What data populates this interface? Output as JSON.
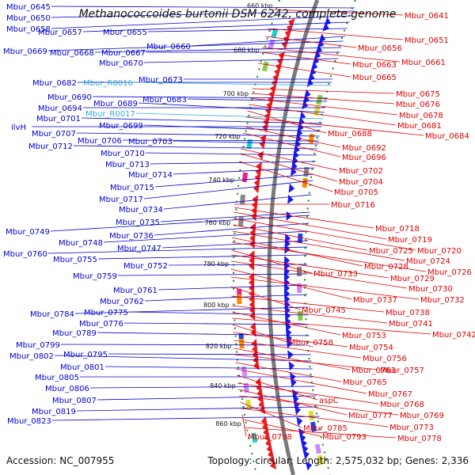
{
  "title": "Methanococcoides burtonii DSM 6242, complete genome",
  "footer": {
    "accession": "Accession: NC_007955",
    "summary": "Topology: circular; Length: 2,575,032 bp; Genes: 2,336"
  },
  "colors": {
    "left_label": "#0000cc",
    "rna_label": "#33aadd",
    "right_label": "#dd0000",
    "forward_strand": "#1a1aee",
    "reverse_strand": "#ee1a1a",
    "backbone": "#7a7a7a",
    "tick": "#118811"
  },
  "scale_ticks": [
    "660 kbp",
    "680 kbp",
    "700 kbp",
    "720 kbp",
    "740 kbp",
    "760 kbp",
    "780 kbp",
    "800 kbp",
    "820 kbp",
    "840 kbp",
    "860 kbp"
  ],
  "left_labels": [
    {
      "text": "Mbur_0645",
      "type": "gene"
    },
    {
      "text": "Mbur_0650",
      "type": "gene"
    },
    {
      "text": "Mbur_0658",
      "type": "gene"
    },
    {
      "text": "Mbur_0657",
      "type": "gene"
    },
    {
      "text": "Mbur_0655",
      "type": "gene"
    },
    {
      "text": "Mbur_0660",
      "type": "gene"
    },
    {
      "text": "Mbur_0669",
      "type": "gene"
    },
    {
      "text": "Mbur_0668",
      "type": "gene"
    },
    {
      "text": "Mbur_0667",
      "type": "gene"
    },
    {
      "text": "Mbur_0670",
      "type": "gene"
    },
    {
      "text": "Mbur_0673",
      "type": "gene"
    },
    {
      "text": "Mbur_0682",
      "type": "gene"
    },
    {
      "text": "Mbur_R0016",
      "type": "rna"
    },
    {
      "text": "Mbur_0690",
      "type": "gene"
    },
    {
      "text": "Mbur_0683",
      "type": "gene"
    },
    {
      "text": "Mbur_0694",
      "type": "gene"
    },
    {
      "text": "Mbur_0689",
      "type": "gene"
    },
    {
      "text": "Mbur_R0017",
      "type": "rna"
    },
    {
      "text": "Mbur_0701",
      "type": "gene"
    },
    {
      "text": "ilvH",
      "type": "gene"
    },
    {
      "text": "Mbur_0699",
      "type": "gene"
    },
    {
      "text": "Mbur_0707",
      "type": "gene"
    },
    {
      "text": "Mbur_0706",
      "type": "gene"
    },
    {
      "text": "Mbur_0703",
      "type": "gene"
    },
    {
      "text": "Mbur_0712",
      "type": "gene"
    },
    {
      "text": "Mbur_0710",
      "type": "gene"
    },
    {
      "text": "Mbur_0713",
      "type": "gene"
    },
    {
      "text": "Mbur_0714",
      "type": "gene"
    },
    {
      "text": "Mbur_0715",
      "type": "gene"
    },
    {
      "text": "Mbur_0717",
      "type": "gene"
    },
    {
      "text": "Mbur_0734",
      "type": "gene"
    },
    {
      "text": "Mbur_0735",
      "type": "gene"
    },
    {
      "text": "Mbur_0749",
      "type": "gene"
    },
    {
      "text": "Mbur_0736",
      "type": "gene"
    },
    {
      "text": "Mbur_0748",
      "type": "gene"
    },
    {
      "text": "Mbur_0747",
      "type": "gene"
    },
    {
      "text": "Mbur_0760",
      "type": "gene"
    },
    {
      "text": "Mbur_0755",
      "type": "gene"
    },
    {
      "text": "Mbur_0752",
      "type": "gene"
    },
    {
      "text": "Mbur_0759",
      "type": "gene"
    },
    {
      "text": "Mbur_0761",
      "type": "gene"
    },
    {
      "text": "Mbur_0762",
      "type": "gene"
    },
    {
      "text": "Mbur_0784",
      "type": "gene"
    },
    {
      "text": "Mbur_0775",
      "type": "gene"
    },
    {
      "text": "Mbur_0776",
      "type": "gene"
    },
    {
      "text": "Mbur_0789",
      "type": "gene"
    },
    {
      "text": "Mbur_0799",
      "type": "gene"
    },
    {
      "text": "Mbur_0795",
      "type": "gene"
    },
    {
      "text": "Mbur_0802",
      "type": "gene"
    },
    {
      "text": "Mbur_0801",
      "type": "gene"
    },
    {
      "text": "Mbur_0805",
      "type": "gene"
    },
    {
      "text": "Mbur_0806",
      "type": "gene"
    },
    {
      "text": "Mbur_0807",
      "type": "gene"
    },
    {
      "text": "Mbur_0819",
      "type": "gene"
    },
    {
      "text": "Mbur_0823",
      "type": "gene"
    }
  ],
  "right_labels": [
    {
      "text": "Mbur_0641"
    },
    {
      "text": "Mbur_0651"
    },
    {
      "text": "Mbur_0656"
    },
    {
      "text": "Mbur_0661"
    },
    {
      "text": "Mbur_0663"
    },
    {
      "text": "Mbur_0665"
    },
    {
      "text": "Mbur_0675"
    },
    {
      "text": "Mbur_0676"
    },
    {
      "text": "Mbur_0678"
    },
    {
      "text": "Mbur_0681"
    },
    {
      "text": "Mbur_0688"
    },
    {
      "text": "Mbur_0684"
    },
    {
      "text": "Mbur_0692"
    },
    {
      "text": "Mbur_0696"
    },
    {
      "text": "Mbur_0702"
    },
    {
      "text": "Mbur_0704"
    },
    {
      "text": "Mbur_0705"
    },
    {
      "text": "Mbur_0716"
    },
    {
      "text": "Mbur_0718"
    },
    {
      "text": "Mbur_0719"
    },
    {
      "text": "Mbur_0720"
    },
    {
      "text": "Mbur_0725"
    },
    {
      "text": "Mbur_0724"
    },
    {
      "text": "Mbur_0728"
    },
    {
      "text": "Mbur_0726"
    },
    {
      "text": "Mbur_0733"
    },
    {
      "text": "Mbur_0729"
    },
    {
      "text": "Mbur_0730"
    },
    {
      "text": "Mbur_0737"
    },
    {
      "text": "Mbur_0732"
    },
    {
      "text": "Mbur_0745"
    },
    {
      "text": "Mbur_0738"
    },
    {
      "text": "Mbur_0741"
    },
    {
      "text": "Mbur_0753"
    },
    {
      "text": "Mbur_0742"
    },
    {
      "text": "Mbur_0758"
    },
    {
      "text": "Mbur_0754"
    },
    {
      "text": "Mbur_0756"
    },
    {
      "text": "Mbur_0763"
    },
    {
      "text": "Mbur_0757"
    },
    {
      "text": "Mbur_0765"
    },
    {
      "text": "Mbur_0767"
    },
    {
      "text": "aspC"
    },
    {
      "text": "Mbur_0768"
    },
    {
      "text": "Mbur_0777"
    },
    {
      "text": "Mbur_0769"
    },
    {
      "text": "Mbur_0785"
    },
    {
      "text": "Mbur_0773"
    },
    {
      "text": "Mbur_0798"
    },
    {
      "text": "Mbur_0793"
    },
    {
      "text": "Mbur_0778"
    }
  ]
}
